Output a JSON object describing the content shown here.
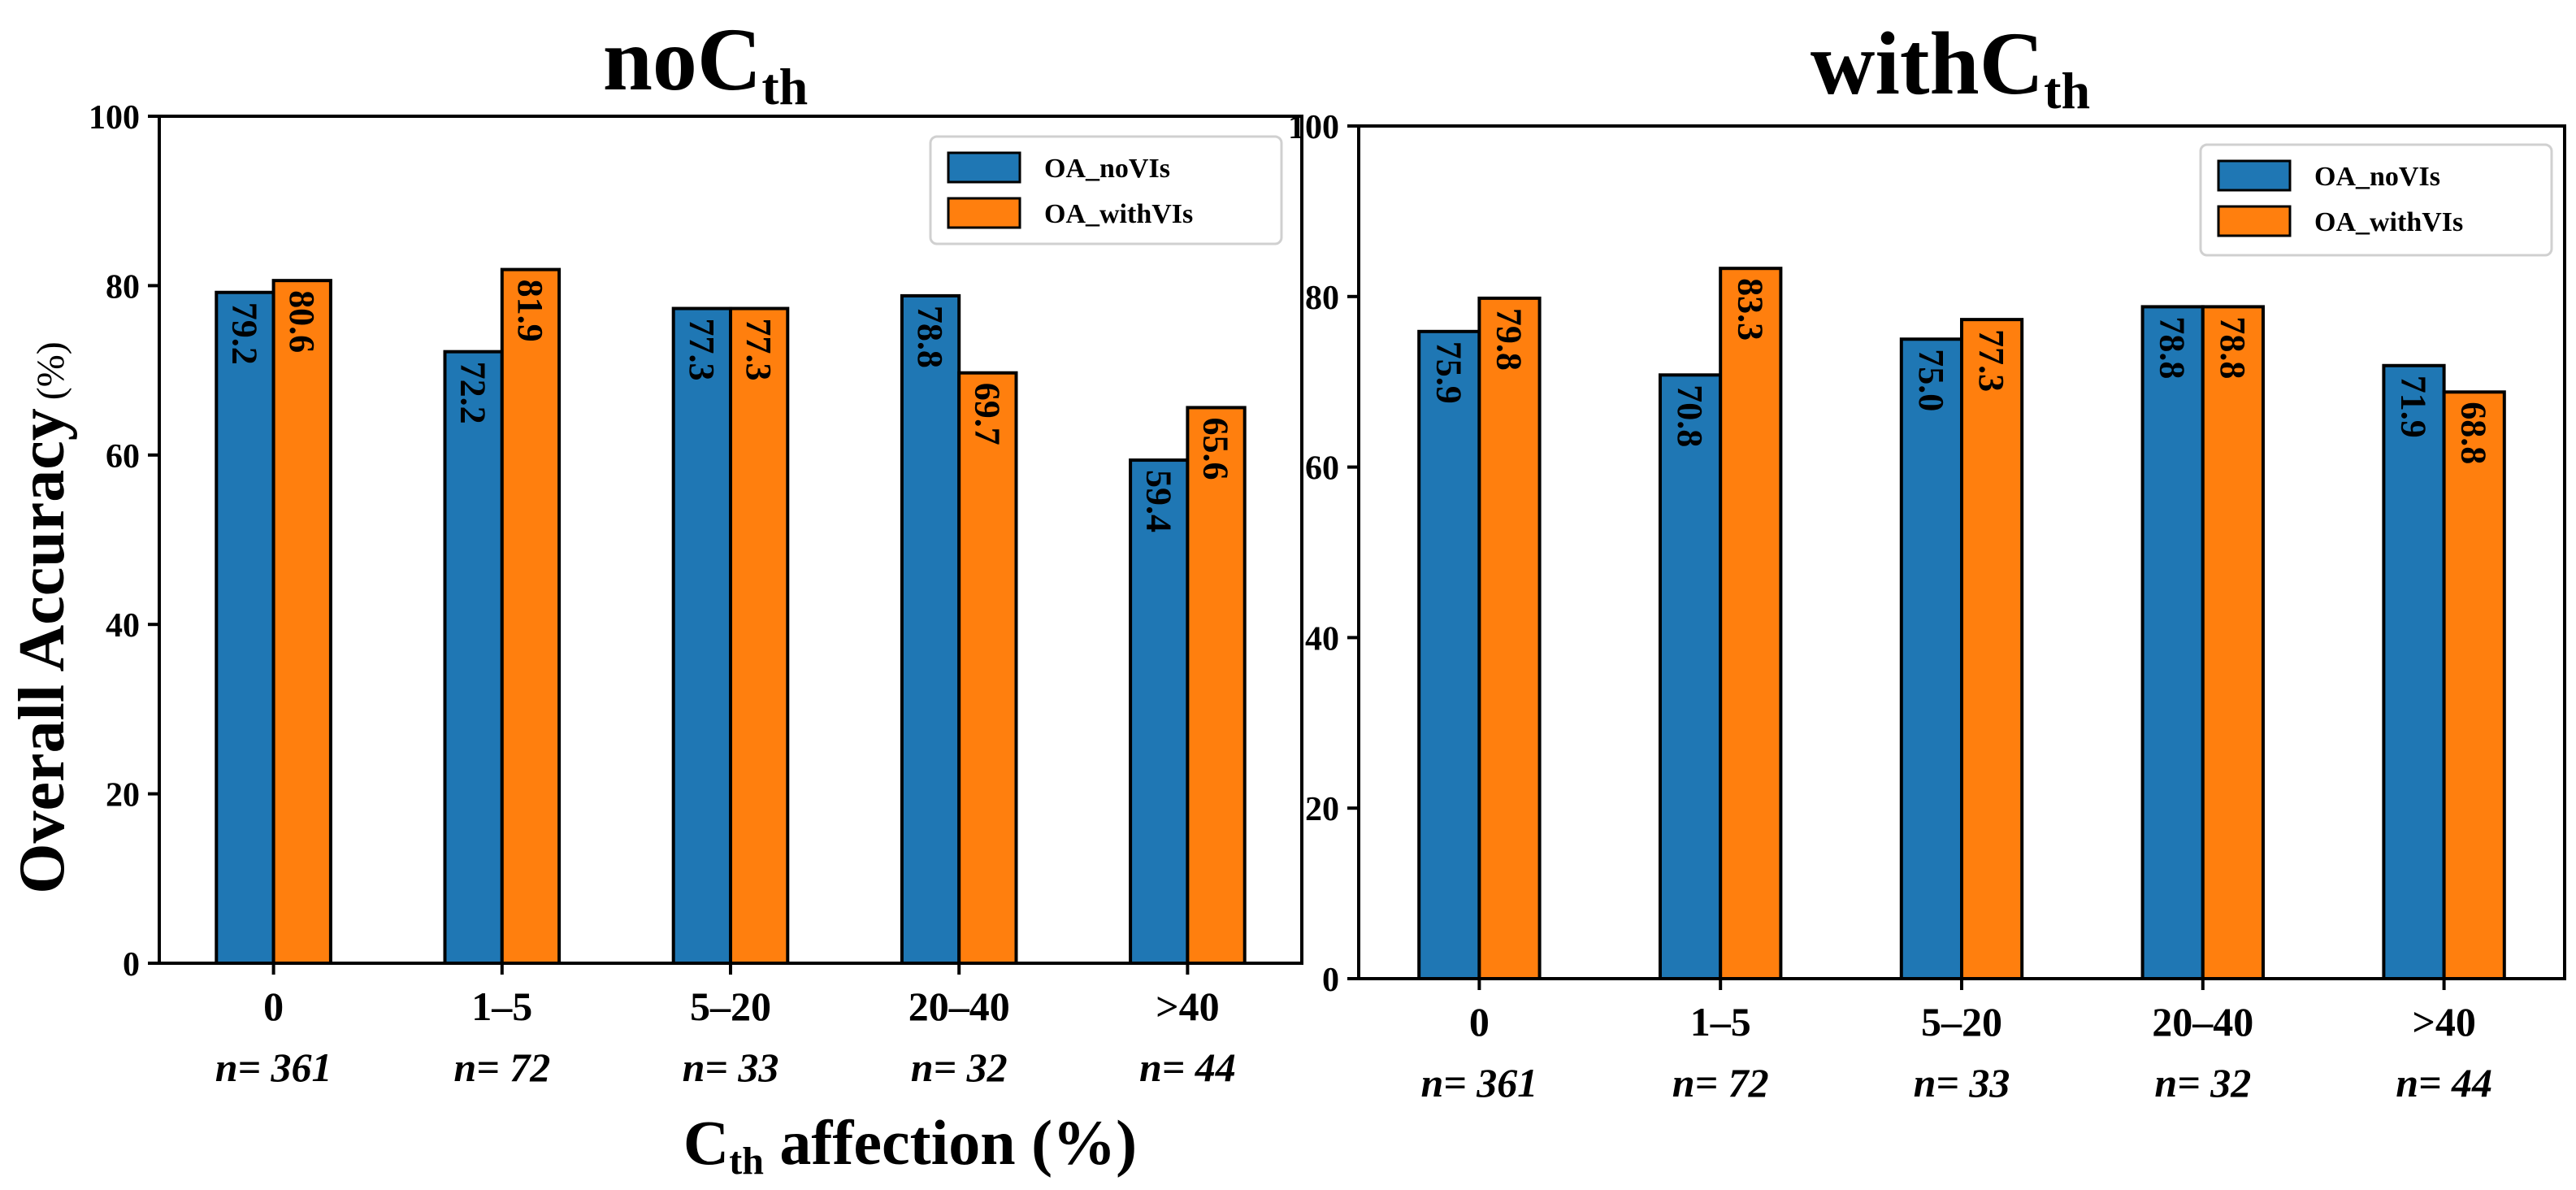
{
  "colors": {
    "noVIs": "#1f77b4",
    "withVIs": "#ff7f0e"
  },
  "shared": {
    "ylabel": "Overall Accuracy",
    "ylabel_unit": "(%)",
    "xlabel_main": "C",
    "xlabel_sub": "th",
    "xlabel_rest": " affection (%)"
  },
  "chart_data": [
    {
      "type": "bar",
      "title": "noC",
      "title_sub": "th",
      "categories": [
        "0",
        "1–5",
        "5–20",
        "20–40",
        ">40"
      ],
      "counts": [
        "n= 361",
        "n= 72",
        "n= 33",
        "n= 32",
        "n= 44"
      ],
      "ylim": [
        0,
        100
      ],
      "yticks": [
        0,
        20,
        40,
        60,
        80,
        100
      ],
      "legend": "upper right",
      "series": [
        {
          "name": "OA_noVIs",
          "values": [
            79.2,
            72.2,
            77.3,
            78.8,
            59.4
          ],
          "labels": [
            "79.2",
            "72.2",
            "77.3",
            "78.8",
            "59.4"
          ]
        },
        {
          "name": "OA_withVIs",
          "values": [
            80.6,
            81.9,
            77.3,
            69.7,
            65.6
          ],
          "labels": [
            "80.6",
            "81.9",
            "77.3",
            "69.7",
            "65.6"
          ]
        }
      ]
    },
    {
      "type": "bar",
      "title": "withC",
      "title_sub": "th",
      "categories": [
        "0",
        "1–5",
        "5–20",
        "20–40",
        ">40"
      ],
      "counts": [
        "n= 361",
        "n= 72",
        "n= 33",
        "n= 32",
        "n= 44"
      ],
      "ylim": [
        0,
        100
      ],
      "yticks": [
        0,
        20,
        40,
        60,
        80,
        100
      ],
      "legend": "upper right",
      "series": [
        {
          "name": "OA_noVIs",
          "values": [
            75.9,
            70.8,
            75.0,
            78.8,
            71.9
          ],
          "labels": [
            "75.9",
            "70.8",
            "75.0",
            "78.8",
            "71.9"
          ]
        },
        {
          "name": "OA_withVIs",
          "values": [
            79.8,
            83.3,
            77.3,
            78.8,
            68.8
          ],
          "labels": [
            "79.8",
            "83.3",
            "77.3",
            "78.8",
            "68.8"
          ]
        }
      ]
    }
  ]
}
